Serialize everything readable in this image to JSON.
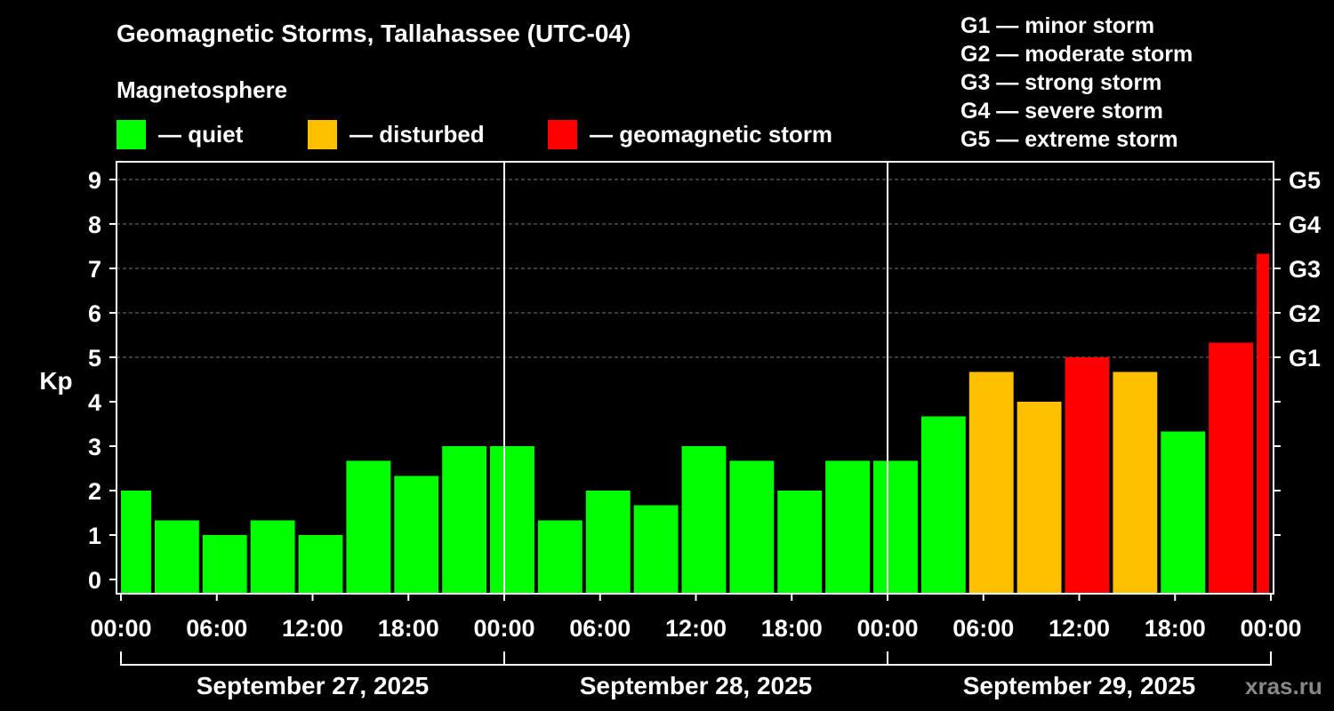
{
  "title": "Geomagnetic Storms, Tallahassee (UTC-04)",
  "magnetosphere_label": "Magnetosphere",
  "legend": [
    {
      "label": "— quiet",
      "color": "#00ff00"
    },
    {
      "label": "— disturbed",
      "color": "#ffc000"
    },
    {
      "label": "— geomagnetic storm",
      "color": "#ff0000"
    }
  ],
  "g_scale": [
    "G1 — minor storm",
    "G2 — moderate storm",
    "G3 — strong storm",
    "G4 — severe storm",
    "G5 — extreme storm"
  ],
  "watermark": "xras.ru",
  "colors": {
    "quiet": "#00ff00",
    "disturbed": "#ffc000",
    "storm": "#ff0000",
    "background": "#000000",
    "grid": "#777777",
    "axis": "#ffffff"
  },
  "chart_data": {
    "type": "bar",
    "ylabel": "Kp",
    "ylim": [
      0,
      9
    ],
    "y_ticks": [
      "0",
      "1",
      "2",
      "3",
      "4",
      "5",
      "6",
      "7",
      "8",
      "9"
    ],
    "right_ticks": [
      {
        "kp": 5,
        "label": "G1"
      },
      {
        "kp": 6,
        "label": "G2"
      },
      {
        "kp": 7,
        "label": "G3"
      },
      {
        "kp": 8,
        "label": "G4"
      },
      {
        "kp": 9,
        "label": "G5"
      }
    ],
    "grid": true,
    "x_tick_labels": [
      "00:00",
      "06:00",
      "12:00",
      "18:00",
      "00:00",
      "06:00",
      "12:00",
      "18:00",
      "00:00",
      "06:00",
      "12:00",
      "18:00",
      "00:00"
    ],
    "days": [
      "September 27, 2025",
      "September 28, 2025",
      "September 29, 2025"
    ],
    "bar_interval_hours": 3,
    "bars": [
      {
        "start_hour": 0,
        "end_hour": 2,
        "kp": 2.0,
        "level": "quiet"
      },
      {
        "start_hour": 2,
        "end_hour": 5,
        "kp": 1.33,
        "level": "quiet"
      },
      {
        "start_hour": 5,
        "end_hour": 8,
        "kp": 1.0,
        "level": "quiet"
      },
      {
        "start_hour": 8,
        "end_hour": 11,
        "kp": 1.33,
        "level": "quiet"
      },
      {
        "start_hour": 11,
        "end_hour": 14,
        "kp": 1.0,
        "level": "quiet"
      },
      {
        "start_hour": 14,
        "end_hour": 17,
        "kp": 2.67,
        "level": "quiet"
      },
      {
        "start_hour": 17,
        "end_hour": 20,
        "kp": 2.33,
        "level": "quiet"
      },
      {
        "start_hour": 20,
        "end_hour": 23,
        "kp": 3.0,
        "level": "quiet"
      },
      {
        "start_hour": 23,
        "end_hour": 26,
        "kp": 3.0,
        "level": "quiet"
      },
      {
        "start_hour": 26,
        "end_hour": 29,
        "kp": 1.33,
        "level": "quiet"
      },
      {
        "start_hour": 29,
        "end_hour": 32,
        "kp": 2.0,
        "level": "quiet"
      },
      {
        "start_hour": 32,
        "end_hour": 35,
        "kp": 1.67,
        "level": "quiet"
      },
      {
        "start_hour": 35,
        "end_hour": 38,
        "kp": 3.0,
        "level": "quiet"
      },
      {
        "start_hour": 38,
        "end_hour": 41,
        "kp": 2.67,
        "level": "quiet"
      },
      {
        "start_hour": 41,
        "end_hour": 44,
        "kp": 2.0,
        "level": "quiet"
      },
      {
        "start_hour": 44,
        "end_hour": 47,
        "kp": 2.67,
        "level": "quiet"
      },
      {
        "start_hour": 47,
        "end_hour": 50,
        "kp": 2.67,
        "level": "quiet"
      },
      {
        "start_hour": 50,
        "end_hour": 53,
        "kp": 3.67,
        "level": "quiet"
      },
      {
        "start_hour": 53,
        "end_hour": 56,
        "kp": 4.67,
        "level": "disturbed"
      },
      {
        "start_hour": 56,
        "end_hour": 59,
        "kp": 4.0,
        "level": "disturbed"
      },
      {
        "start_hour": 59,
        "end_hour": 62,
        "kp": 5.0,
        "level": "storm"
      },
      {
        "start_hour": 62,
        "end_hour": 65,
        "kp": 4.67,
        "level": "disturbed"
      },
      {
        "start_hour": 65,
        "end_hour": 68,
        "kp": 3.33,
        "level": "quiet"
      },
      {
        "start_hour": 68,
        "end_hour": 71,
        "kp": 5.33,
        "level": "storm"
      },
      {
        "start_hour": 71,
        "end_hour": 72,
        "kp": 7.33,
        "level": "storm"
      }
    ]
  }
}
